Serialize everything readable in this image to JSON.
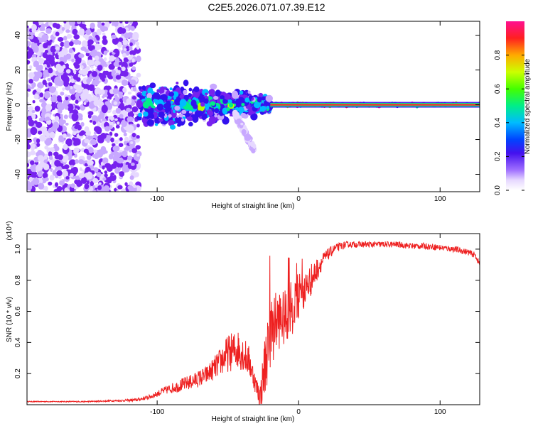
{
  "title": "C2E5.2026.071.07.39.E12",
  "colors": {
    "snr_line": "#ee2020",
    "spectral_ridge": "#ff2a2a",
    "colormap": [
      "#ffffff",
      "#e6d8ff",
      "#c8a8ff",
      "#7722ee",
      "#3311ee",
      "#00bbff",
      "#00ee88",
      "#bbff00",
      "#ffaa00",
      "#ff2020",
      "#ff1090"
    ]
  },
  "chart_data": [
    {
      "type": "heatmap",
      "name": "spectrogram",
      "xlabel": "Height of straight line (km)",
      "ylabel": "Frequency (Hz)",
      "xlim": [
        -192,
        128
      ],
      "ylim": [
        -50,
        48
      ],
      "xticks": [
        -100,
        0,
        100
      ],
      "xtick_labels": [
        "-100",
        "0",
        "100"
      ],
      "yticks": [
        -40,
        -20,
        0,
        20,
        40
      ],
      "ytick_labels": [
        "-40",
        "-20",
        "0",
        "20",
        "40"
      ],
      "colorbar": {
        "label": "Normalized spectral amplitude",
        "range": [
          0,
          1
        ],
        "ticks": [
          0.0,
          0.2,
          0.4,
          0.6,
          0.8
        ],
        "tick_labels": [
          "0.0",
          "0.2",
          "0.4",
          "0.6",
          "0.8"
        ]
      },
      "regions": [
        {
          "name": "scattered noise",
          "x": [
            -192,
            -113
          ],
          "freq": [
            -50,
            48
          ],
          "amplitude": 0.1
        },
        {
          "name": "broadened echo",
          "x": [
            -113,
            -20
          ],
          "freq": [
            -10,
            12
          ],
          "amplitude": 0.35
        },
        {
          "name": "descending tail",
          "x": [
            -45,
            -32
          ],
          "freq": [
            -25,
            -5
          ],
          "amplitude": 0.15
        },
        {
          "name": "narrow carrier",
          "x": [
            -20,
            128
          ],
          "freq": [
            -1,
            1
          ],
          "amplitude": 0.95
        }
      ]
    },
    {
      "type": "line",
      "name": "snr",
      "xlabel": "Height of straight line (km)",
      "ylabel": "SNR (10 * v/v)",
      "y_multiplier": "(x10⁴)",
      "xlim": [
        -192,
        128
      ],
      "ylim": [
        0,
        1.1
      ],
      "xticks": [
        -100,
        0,
        100
      ],
      "xtick_labels": [
        "-100",
        "0",
        "100"
      ],
      "yticks": [
        0.2,
        0.4,
        0.6,
        0.8,
        1.0
      ],
      "ytick_labels": [
        "0.2",
        "0.4",
        "0.6",
        "0.8",
        "1.0"
      ],
      "series": [
        {
          "name": "SNR",
          "x": [
            -192,
            -170,
            -150,
            -130,
            -115,
            -105,
            -95,
            -85,
            -75,
            -65,
            -58,
            -50,
            -42,
            -35,
            -30,
            -27,
            -24,
            -20,
            -15,
            -10,
            -5,
            0,
            5,
            10,
            15,
            20,
            25,
            30,
            35,
            40,
            50,
            60,
            70,
            80,
            90,
            100,
            110,
            120,
            125,
            128
          ],
          "values": [
            0.02,
            0.02,
            0.02,
            0.025,
            0.03,
            0.05,
            0.09,
            0.12,
            0.15,
            0.19,
            0.25,
            0.33,
            0.36,
            0.28,
            0.12,
            0.05,
            0.25,
            0.45,
            0.55,
            0.55,
            0.62,
            0.7,
            0.75,
            0.82,
            0.9,
            0.96,
            1.0,
            1.02,
            1.03,
            1.03,
            1.03,
            1.03,
            1.03,
            1.02,
            1.02,
            1.01,
            1.0,
            0.98,
            0.96,
            0.9
          ],
          "noise": [
            0.003,
            0.003,
            0.004,
            0.005,
            0.01,
            0.015,
            0.025,
            0.04,
            0.05,
            0.06,
            0.08,
            0.12,
            0.13,
            0.1,
            0.06,
            0.1,
            0.2,
            0.22,
            0.2,
            0.18,
            0.18,
            0.15,
            0.12,
            0.1,
            0.06,
            0.04,
            0.03,
            0.025,
            0.02,
            0.02,
            0.02,
            0.02,
            0.02,
            0.02,
            0.02,
            0.02,
            0.02,
            0.02,
            0.02,
            0.02
          ]
        }
      ]
    }
  ]
}
